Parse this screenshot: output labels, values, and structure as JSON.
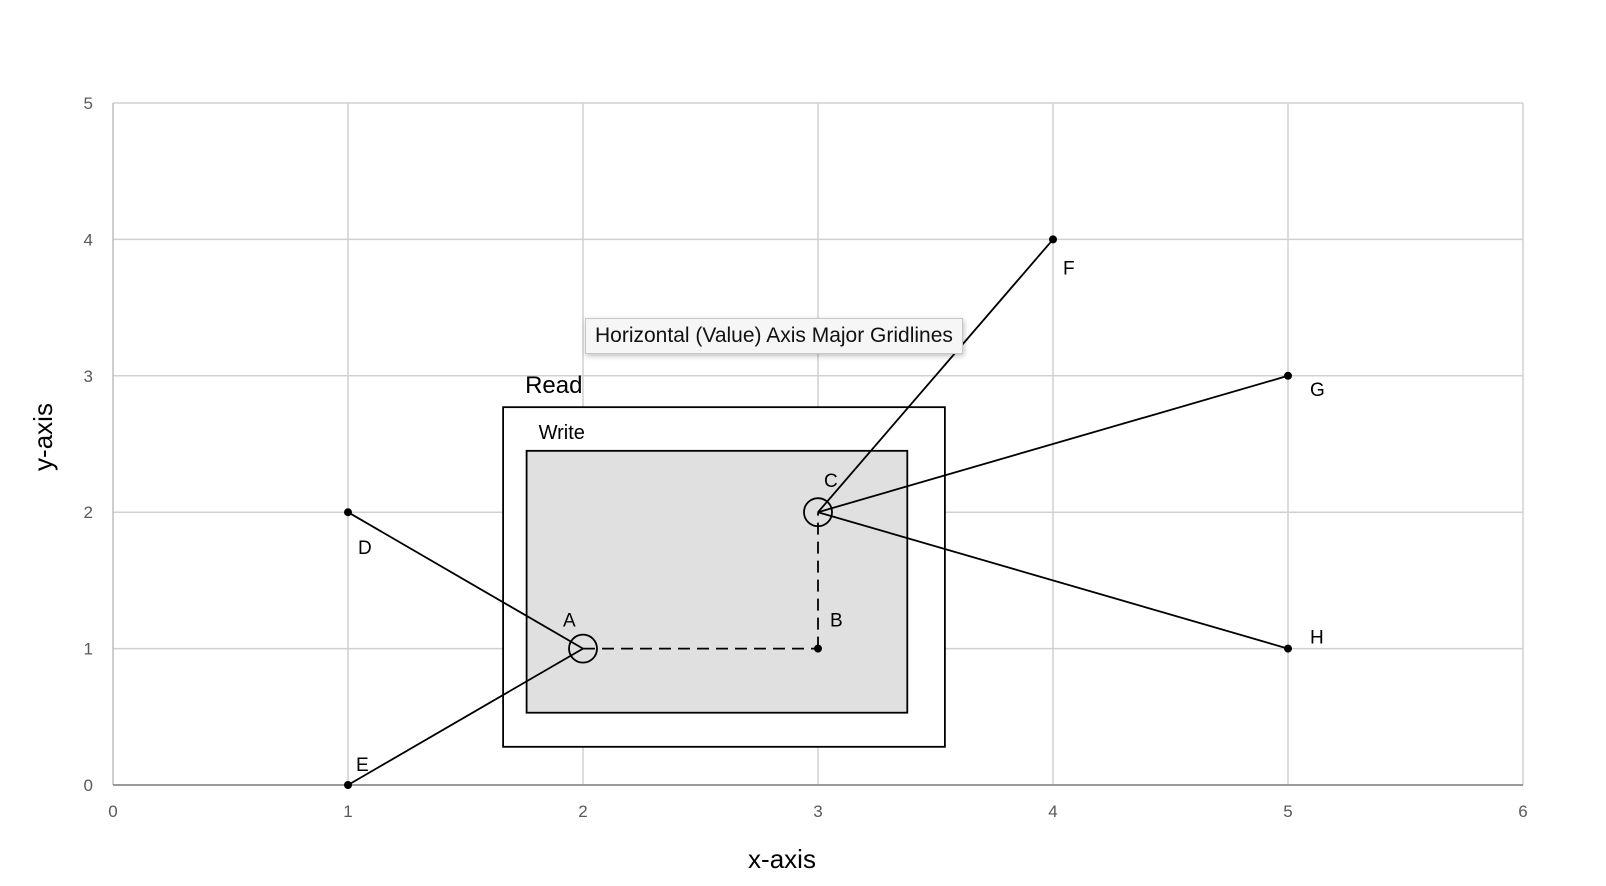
{
  "chart_data": {
    "type": "scatter",
    "xlabel": "x-axis",
    "ylabel": "y-axis",
    "xlim": [
      0,
      6
    ],
    "ylim": [
      0,
      5
    ],
    "xticks": [
      "0",
      "1",
      "2",
      "3",
      "4",
      "5",
      "6"
    ],
    "yticks": [
      "0",
      "1",
      "2",
      "3",
      "4",
      "5"
    ],
    "grid": true,
    "points": [
      {
        "label": "A",
        "x": 2,
        "y": 1,
        "marker": "circle-large"
      },
      {
        "label": "B",
        "x": 3,
        "y": 1,
        "marker": "dot"
      },
      {
        "label": "C",
        "x": 3,
        "y": 2,
        "marker": "circle-large"
      },
      {
        "label": "D",
        "x": 1,
        "y": 2,
        "marker": "dot"
      },
      {
        "label": "E",
        "x": 1,
        "y": 0,
        "marker": "dot"
      },
      {
        "label": "F",
        "x": 4,
        "y": 4,
        "marker": "dot"
      },
      {
        "label": "G",
        "x": 5,
        "y": 3,
        "marker": "dot"
      },
      {
        "label": "H",
        "x": 5,
        "y": 1,
        "marker": "dot"
      }
    ],
    "solid_segments": [
      [
        "D",
        "A"
      ],
      [
        "E",
        "A"
      ],
      [
        "C",
        "F"
      ],
      [
        "C",
        "G"
      ],
      [
        "C",
        "H"
      ]
    ],
    "dashed_segments": [
      [
        "A",
        "B"
      ],
      [
        "B",
        "C"
      ]
    ],
    "regions": [
      {
        "label": "Read",
        "x": [
          1.66,
          3.54
        ],
        "y": [
          0.28,
          2.77
        ],
        "fill": "#ffffff"
      },
      {
        "label": "Write",
        "x": [
          1.76,
          3.38
        ],
        "y": [
          0.53,
          2.45
        ],
        "fill": "#e0e0e0"
      }
    ]
  },
  "tooltip": {
    "text": "Horizontal (Value) Axis Major Gridlines"
  }
}
